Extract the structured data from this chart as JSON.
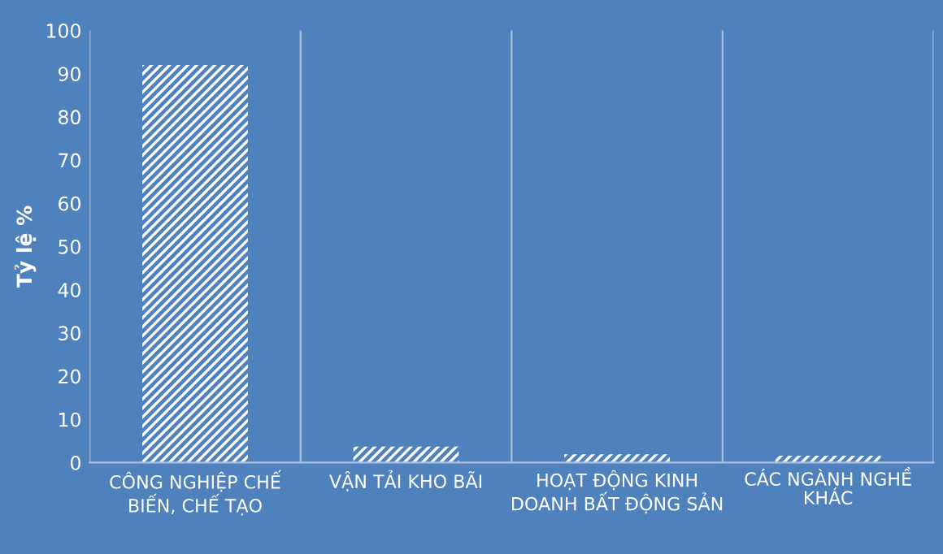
{
  "chart_data": {
    "type": "bar",
    "ylabel": "Tỷ lệ %",
    "categories": [
      "CÔNG NGHIỆP CHẾ BIẾN, CHẾ TẠO",
      "VẬN TẢI KHO BÃI",
      "HOẠT ĐỘNG KINH DOANH BẤT ĐỘNG SẢN",
      "CÁC NGÀNH NGHỀ KHÁC"
    ],
    "values": [
      92,
      3.7,
      1.9,
      1.6
    ],
    "color": "#ffffff",
    "ylim": [
      0,
      100
    ],
    "yticks": [
      0,
      10,
      20,
      30,
      40,
      50,
      60,
      70,
      80,
      90,
      100
    ],
    "grid": "x"
  }
}
